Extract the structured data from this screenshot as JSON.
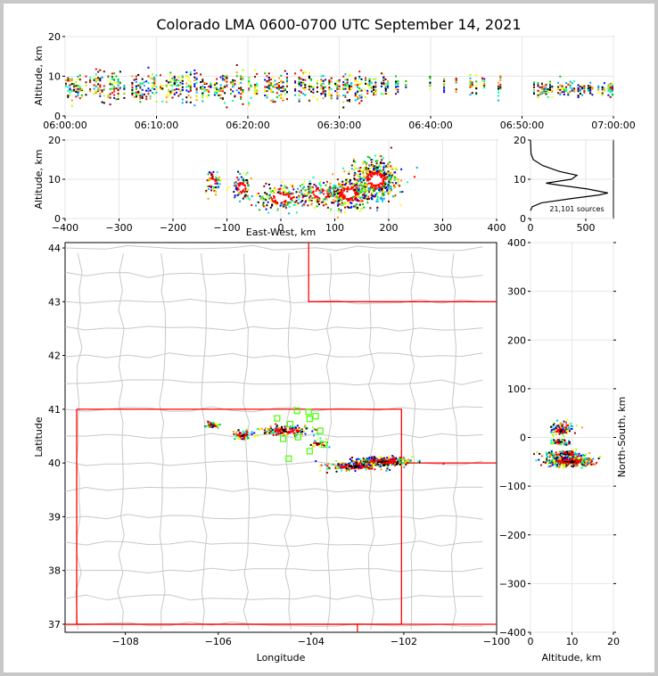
{
  "title": "Colorado LMA 0600-0700 UTC September 14, 2021",
  "chart_data": [
    {
      "id": "time-height",
      "type": "scatter",
      "ylabel": "Altitude, km",
      "xlim": [
        "06:00:00",
        "07:00:00"
      ],
      "ylim": [
        0,
        20
      ],
      "xticks": [
        "06:00:00",
        "06:10:00",
        "06:20:00",
        "06:30:00",
        "06:40:00",
        "06:50:00",
        "07:00:00"
      ],
      "yticks": [
        "0",
        "10",
        "20"
      ],
      "color_scale": "time (blue early to red late)",
      "clusters": [
        {
          "t_start_min": 0,
          "t_end_min": 35,
          "alt_center_km": 7.5,
          "alt_spread_km": 3,
          "weight": 0.8
        },
        {
          "t_start_min": 35,
          "t_end_min": 48,
          "alt_center_km": 8,
          "alt_spread_km": 2,
          "weight": 0.25
        },
        {
          "t_start_min": 51,
          "t_end_min": 60,
          "alt_center_km": 7,
          "alt_spread_km": 1.5,
          "weight": 0.7
        }
      ]
    },
    {
      "id": "east-west-height",
      "type": "scatter",
      "xlabel": "East-West, km",
      "ylabel": "Altitude, km",
      "xlim": [
        -400,
        400
      ],
      "ylim": [
        0,
        20
      ],
      "xticks": [
        "−400",
        "−300",
        "−200",
        "−100",
        "0",
        "100",
        "200",
        "300",
        "400"
      ],
      "yticks": [
        "0",
        "10",
        "20"
      ],
      "clusters": [
        {
          "x_km": -128,
          "alt_km": 9.5,
          "sx": 6,
          "sz": 1.5,
          "n": 60
        },
        {
          "x_km": -75,
          "alt_km": 8,
          "sx": 10,
          "sz": 1.5,
          "n": 90
        },
        {
          "x_km": 0,
          "alt_km": 5.5,
          "sx": 25,
          "sz": 1.5,
          "n": 220
        },
        {
          "x_km": 70,
          "alt_km": 6.5,
          "sx": 20,
          "sz": 1.5,
          "n": 160
        },
        {
          "x_km": 125,
          "alt_km": 6.5,
          "sx": 20,
          "sz": 2,
          "n": 300
        },
        {
          "x_km": 175,
          "alt_km": 10,
          "sx": 20,
          "sz": 2.5,
          "n": 500
        }
      ]
    },
    {
      "id": "altitude-histogram",
      "type": "line",
      "xlim": [
        0,
        750
      ],
      "ylim": [
        0,
        20
      ],
      "xticks": [
        "0",
        "500"
      ],
      "yticks": [
        "0",
        "10",
        "20"
      ],
      "annotation": "21,101 sources",
      "profile": [
        {
          "alt": 20,
          "count": 0
        },
        {
          "alt": 16.5,
          "count": 5
        },
        {
          "alt": 15,
          "count": 25
        },
        {
          "alt": 13.5,
          "count": 110
        },
        {
          "alt": 12,
          "count": 260
        },
        {
          "alt": 11,
          "count": 420
        },
        {
          "alt": 10,
          "count": 370
        },
        {
          "alt": 9,
          "count": 140
        },
        {
          "alt": 8.5,
          "count": 260
        },
        {
          "alt": 7.5,
          "count": 520
        },
        {
          "alt": 6.5,
          "count": 700
        },
        {
          "alt": 6,
          "count": 620
        },
        {
          "alt": 5,
          "count": 350
        },
        {
          "alt": 4,
          "count": 100
        },
        {
          "alt": 3,
          "count": 15
        },
        {
          "alt": 2,
          "count": 0
        }
      ]
    },
    {
      "id": "plan-view-map",
      "type": "scatter",
      "xlabel": "Longitude",
      "ylabel": "Latitude",
      "xlim": [
        -109.3,
        -100
      ],
      "ylim": [
        36.85,
        44.1
      ],
      "xticks": [
        "−108",
        "−106",
        "−104",
        "−102",
        "−100"
      ],
      "yticks": [
        "37",
        "38",
        "39",
        "40",
        "41",
        "42",
        "43",
        "44"
      ],
      "state_boundaries_color": "#ff0000",
      "county_boundaries_color": "#c8c8c8",
      "stations": [
        {
          "lon": -104.3,
          "lat": 40.97
        },
        {
          "lon": -104.05,
          "lat": 40.95
        },
        {
          "lon": -103.9,
          "lat": 40.87
        },
        {
          "lon": -104.03,
          "lat": 40.82
        },
        {
          "lon": -104.73,
          "lat": 40.83
        },
        {
          "lon": -104.45,
          "lat": 40.72
        },
        {
          "lon": -103.8,
          "lat": 40.6
        },
        {
          "lon": -104.6,
          "lat": 40.45
        },
        {
          "lon": -104.28,
          "lat": 40.48
        },
        {
          "lon": -103.72,
          "lat": 40.34
        },
        {
          "lon": -104.03,
          "lat": 40.22
        },
        {
          "lon": -104.48,
          "lat": 40.08
        }
      ],
      "clusters": [
        {
          "lon": -106.15,
          "lat": 40.72,
          "sx": 0.08,
          "sy": 0.03,
          "n": 40
        },
        {
          "lon": -105.5,
          "lat": 40.53,
          "sx": 0.12,
          "sy": 0.04,
          "n": 60
        },
        {
          "lon": -104.55,
          "lat": 40.62,
          "sx": 0.3,
          "sy": 0.04,
          "n": 160
        },
        {
          "lon": -103.88,
          "lat": 40.38,
          "sx": 0.08,
          "sy": 0.04,
          "n": 30
        },
        {
          "lon": -103.1,
          "lat": 39.95,
          "sx": 0.3,
          "sy": 0.04,
          "n": 180
        },
        {
          "lon": -102.45,
          "lat": 40.04,
          "sx": 0.3,
          "sy": 0.04,
          "n": 320
        }
      ]
    },
    {
      "id": "north-south-height",
      "type": "scatter",
      "xlabel": "Altitude, km",
      "ylabel": "North-South, km",
      "xlim": [
        0,
        20
      ],
      "ylim": [
        -400,
        400
      ],
      "xticks": [
        "0",
        "10",
        "20"
      ],
      "yticks": [
        "−400",
        "−300",
        "−200",
        "−100",
        "0",
        "100",
        "200",
        "300",
        "400"
      ],
      "clusters": [
        {
          "alt_km": 8,
          "ns_km": 25,
          "sa": 1.5,
          "sn": 5,
          "n": 50
        },
        {
          "alt_km": 7,
          "ns_km": 15,
          "sa": 1.2,
          "sn": 5,
          "n": 60
        },
        {
          "alt_km": 7,
          "ns_km": -8,
          "sa": 1.2,
          "sn": 3,
          "n": 60
        },
        {
          "alt_km": 8,
          "ns_km": -33,
          "sa": 2.5,
          "sn": 4,
          "n": 120
        },
        {
          "alt_km": 9,
          "ns_km": -48,
          "sa": 3,
          "sn": 5,
          "n": 320
        }
      ]
    }
  ]
}
